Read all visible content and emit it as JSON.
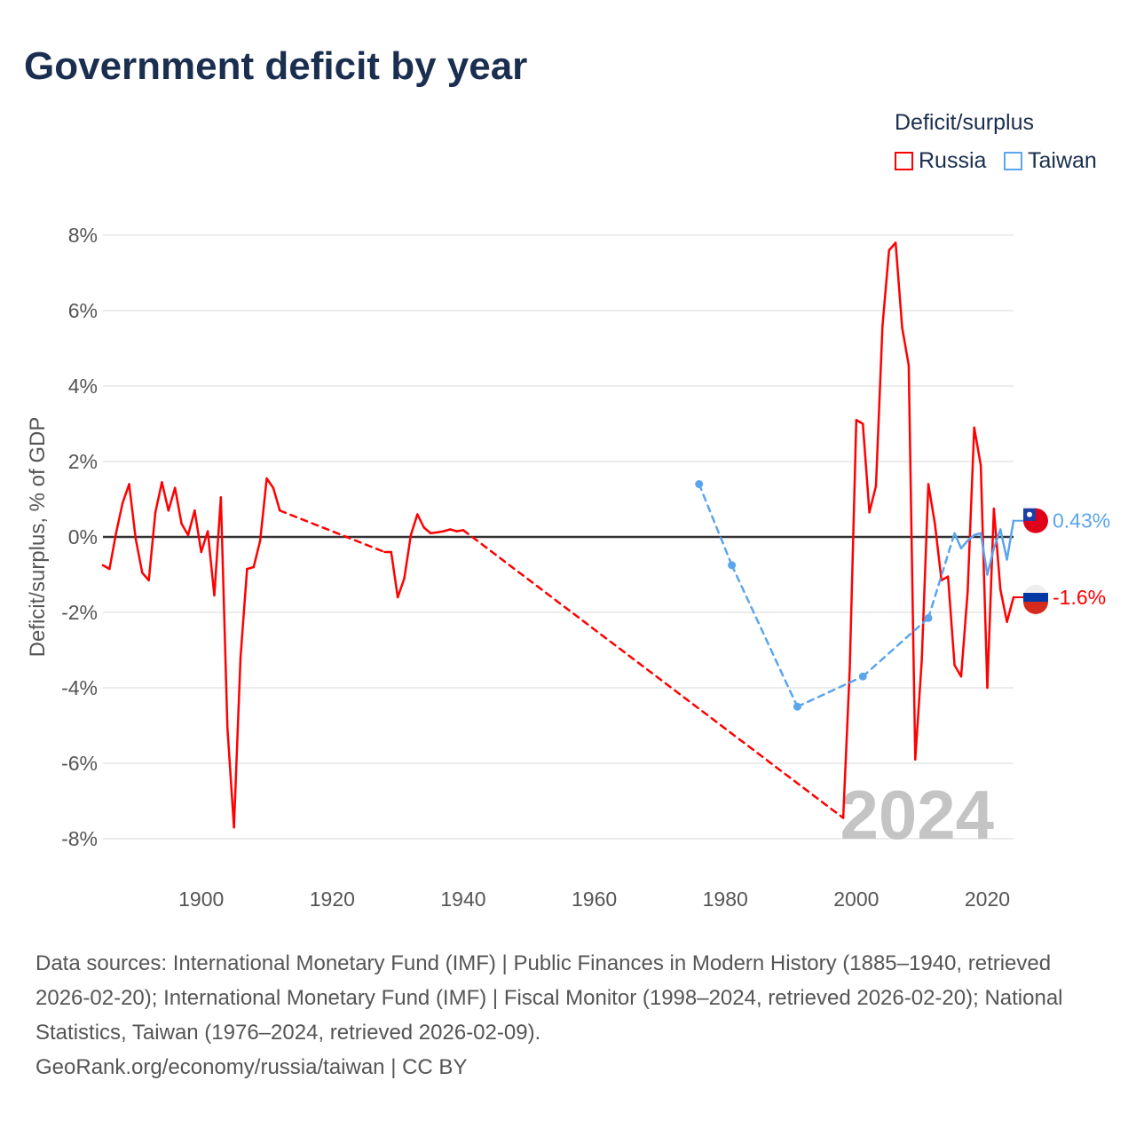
{
  "title": "Government deficit by year",
  "legend": {
    "title": "Deficit/surplus",
    "items": [
      {
        "label": "Russia",
        "color": "#ff0000"
      },
      {
        "label": "Taiwan",
        "color": "#5aa5ee"
      }
    ]
  },
  "chart_data": {
    "type": "line",
    "title": "Government deficit by year",
    "xlabel": "",
    "ylabel": "Deficit/surplus, % of GDP",
    "xlim": [
      1885,
      2024
    ],
    "ylim": [
      -8,
      8
    ],
    "xticks": [
      1900,
      1920,
      1940,
      1960,
      1980,
      2000,
      2020
    ],
    "yticks": [
      8,
      6,
      4,
      2,
      0,
      -2,
      -4,
      -6,
      -8
    ],
    "ytick_labels": [
      "8%",
      "6%",
      "4%",
      "2%",
      "0%",
      "-2%",
      "-4%",
      "-6%",
      "-8%"
    ],
    "grid": true,
    "legend_position": "top-right",
    "current_year_label": "2024",
    "series": [
      {
        "name": "Russia",
        "color": "#ff0000",
        "end_label": "-1.6%",
        "points": [
          [
            1885,
            -0.75
          ],
          [
            1886,
            -0.85
          ],
          [
            1887,
            0.1
          ],
          [
            1888,
            0.9
          ],
          [
            1889,
            1.4
          ],
          [
            1890,
            -0.05
          ],
          [
            1891,
            -0.95
          ],
          [
            1892,
            -1.15
          ],
          [
            1893,
            0.65
          ],
          [
            1894,
            1.45
          ],
          [
            1895,
            0.7
          ],
          [
            1896,
            1.3
          ],
          [
            1897,
            0.35
          ],
          [
            1898,
            0.05
          ],
          [
            1899,
            0.7
          ],
          [
            1900,
            -0.4
          ],
          [
            1901,
            0.15
          ],
          [
            1902,
            -1.55
          ],
          [
            1903,
            1.05
          ],
          [
            1904,
            -5.05
          ],
          [
            1905,
            -7.7
          ],
          [
            1906,
            -3.2
          ],
          [
            1907,
            -0.85
          ],
          [
            1908,
            -0.8
          ],
          [
            1909,
            -0.1
          ],
          [
            1910,
            1.55
          ],
          [
            1911,
            1.3
          ],
          [
            1912,
            0.7
          ],
          [
            1928,
            -0.4
          ],
          [
            1929,
            -0.4
          ],
          [
            1930,
            -1.6
          ],
          [
            1931,
            -1.1
          ],
          [
            1932,
            0.05
          ],
          [
            1933,
            0.6
          ],
          [
            1934,
            0.25
          ],
          [
            1935,
            0.1
          ],
          [
            1936,
            0.12
          ],
          [
            1937,
            0.15
          ],
          [
            1938,
            0.2
          ],
          [
            1939,
            0.15
          ],
          [
            1940,
            0.18
          ],
          [
            1998,
            -7.45
          ],
          [
            1999,
            -3.5
          ],
          [
            2000,
            3.1
          ],
          [
            2001,
            3.0
          ],
          [
            2002,
            0.65
          ],
          [
            2003,
            1.35
          ],
          [
            2004,
            5.6
          ],
          [
            2005,
            7.6
          ],
          [
            2006,
            7.8
          ],
          [
            2007,
            5.55
          ],
          [
            2008,
            4.55
          ],
          [
            2009,
            -5.9
          ],
          [
            2010,
            -3.25
          ],
          [
            2011,
            1.4
          ],
          [
            2012,
            0.35
          ],
          [
            2013,
            -1.15
          ],
          [
            2014,
            -1.05
          ],
          [
            2015,
            -3.4
          ],
          [
            2016,
            -3.7
          ],
          [
            2017,
            -1.45
          ],
          [
            2018,
            2.9
          ],
          [
            2019,
            1.9
          ],
          [
            2020,
            -4.0
          ],
          [
            2021,
            0.75
          ],
          [
            2022,
            -1.4
          ],
          [
            2023,
            -2.25
          ],
          [
            2024,
            -1.6
          ]
        ]
      },
      {
        "name": "Taiwan",
        "color": "#5aa5ee",
        "end_label": "0.43%",
        "points": [
          [
            1976,
            1.4
          ],
          [
            1981,
            -0.75
          ],
          [
            1991,
            -4.5
          ],
          [
            2001,
            -3.7
          ],
          [
            2011,
            -2.15
          ],
          [
            2015,
            0.1
          ],
          [
            2016,
            -0.3
          ],
          [
            2017,
            -0.1
          ],
          [
            2018,
            0.05
          ],
          [
            2019,
            0.1
          ],
          [
            2020,
            -1.0
          ],
          [
            2021,
            -0.3
          ],
          [
            2022,
            0.2
          ],
          [
            2023,
            -0.6
          ],
          [
            2024,
            0.43
          ]
        ]
      }
    ]
  },
  "footer": {
    "sources": "Data sources: International Monetary Fund (IMF) | Public Finances in Modern History (1885–1940, retrieved 2026-02-20); International Monetary Fund (IMF) | Fiscal Monitor (1998–2024, retrieved 2026-02-20); National Statistics, Taiwan (1976–2024, retrieved 2026-02-09).",
    "credit": "GeoRank.org/economy/russia/taiwan | CC BY"
  }
}
